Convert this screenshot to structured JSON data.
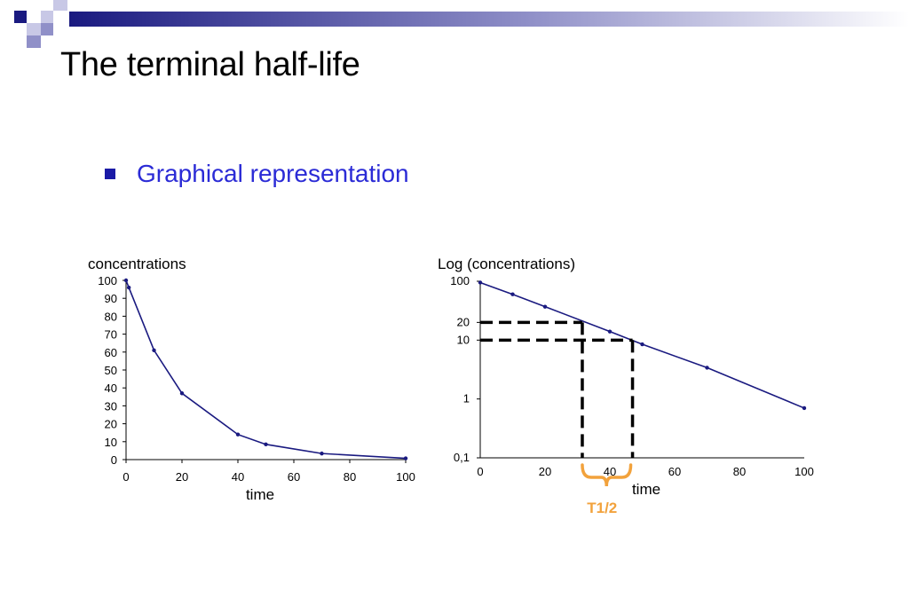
{
  "slide": {
    "title": "The terminal half-life",
    "bullet": "Graphical representation"
  },
  "colors": {
    "accent_dark": "#1a1a80",
    "bullet": "#2b2bd6",
    "series": "#1a1a80",
    "halflife": "#f2a23c"
  },
  "chart_data": [
    {
      "type": "line",
      "ylabel": "concentrations",
      "xlabel": "time",
      "xlim": [
        0,
        100
      ],
      "ylim": [
        0,
        100
      ],
      "xticks": [
        0,
        20,
        40,
        60,
        80,
        100
      ],
      "yticks": [
        0,
        10,
        20,
        30,
        40,
        50,
        60,
        70,
        80,
        90,
        100
      ],
      "series": [
        {
          "x": [
            0,
            1,
            10,
            20,
            40,
            50,
            70,
            100
          ],
          "y": [
            100,
            96,
            61,
            37,
            14,
            8.5,
            3.4,
            0.7
          ]
        }
      ]
    },
    {
      "type": "line",
      "scale": "log",
      "ylabel": "Log (concentrations)",
      "xlabel": "time",
      "xlim": [
        0,
        100
      ],
      "ylim": [
        0.1,
        100
      ],
      "xticks": [
        0,
        20,
        40,
        60,
        80,
        100
      ],
      "yticks": [
        0.1,
        1,
        10,
        20,
        100
      ],
      "ytick_labels": [
        "0,1",
        "1",
        "10",
        "20",
        "100"
      ],
      "series": [
        {
          "x": [
            0,
            10,
            20,
            40,
            50,
            70,
            100
          ],
          "y": [
            95,
            60,
            37,
            14,
            8.5,
            3.4,
            0.7
          ]
        }
      ],
      "halflife": {
        "label": "T1/2",
        "from": {
          "x": 31.5,
          "y": 20
        },
        "to": {
          "x": 47,
          "y": 10
        }
      }
    }
  ]
}
